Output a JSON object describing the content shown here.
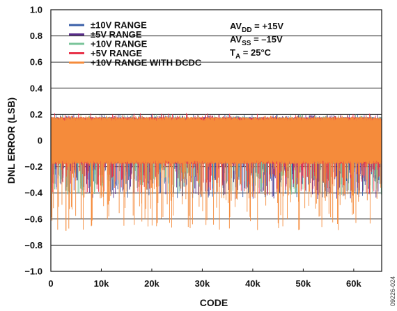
{
  "chart_data": {
    "type": "line",
    "title": "",
    "xlabel": "CODE",
    "ylabel": "DNL ERROR (LSB)",
    "xlim": [
      0,
      65535
    ],
    "ylim": [
      -1.0,
      1.0
    ],
    "x_ticks": [
      "0",
      "10k",
      "20k",
      "30k",
      "40k",
      "50k",
      "60k"
    ],
    "x_tick_values": [
      0,
      10000,
      20000,
      30000,
      40000,
      50000,
      60000
    ],
    "y_ticks": [
      "1.0",
      "0.8",
      "0.6",
      "0.4",
      "0.2",
      "0",
      "−0.2",
      "−0.4",
      "−0.6",
      "−0.8",
      "−1.0"
    ],
    "y_tick_values": [
      1.0,
      0.8,
      0.6,
      0.4,
      0.2,
      0,
      -0.2,
      -0.4,
      -0.6,
      -0.8,
      -1.0
    ],
    "grid": true,
    "legend_position": "top-left",
    "series": [
      {
        "name": "±10V RANGE",
        "color": "#3a5fa8",
        "band": [
          -0.18,
          0.18
        ],
        "min": -0.44,
        "max": 0.2
      },
      {
        "name": "±5V RANGE",
        "color": "#5a2d8c",
        "band": [
          -0.18,
          0.18
        ],
        "min": -0.45,
        "max": 0.2
      },
      {
        "name": "+10V RANGE",
        "color": "#7ac49a",
        "band": [
          -0.18,
          0.18
        ],
        "min": -0.42,
        "max": 0.2
      },
      {
        "name": "+5V RANGE",
        "color": "#e8334a",
        "band": [
          -0.18,
          0.18
        ],
        "min": -0.41,
        "max": 0.21
      },
      {
        "name": "+10V RANGE WITH DCDC",
        "color": "#f58b3b",
        "band": [
          -0.18,
          0.18
        ],
        "min": -0.69,
        "max": 0.19
      }
    ],
    "annotations": {
      "avdd": {
        "label": "AV",
        "sub": "DD",
        "value": " = +15V"
      },
      "avss": {
        "label": "AV",
        "sub": "SS",
        "value": " = –15V"
      },
      "ta": {
        "label": "T",
        "sub": "A",
        "value": " = 25°C"
      }
    },
    "figure_id": "09226-024"
  }
}
